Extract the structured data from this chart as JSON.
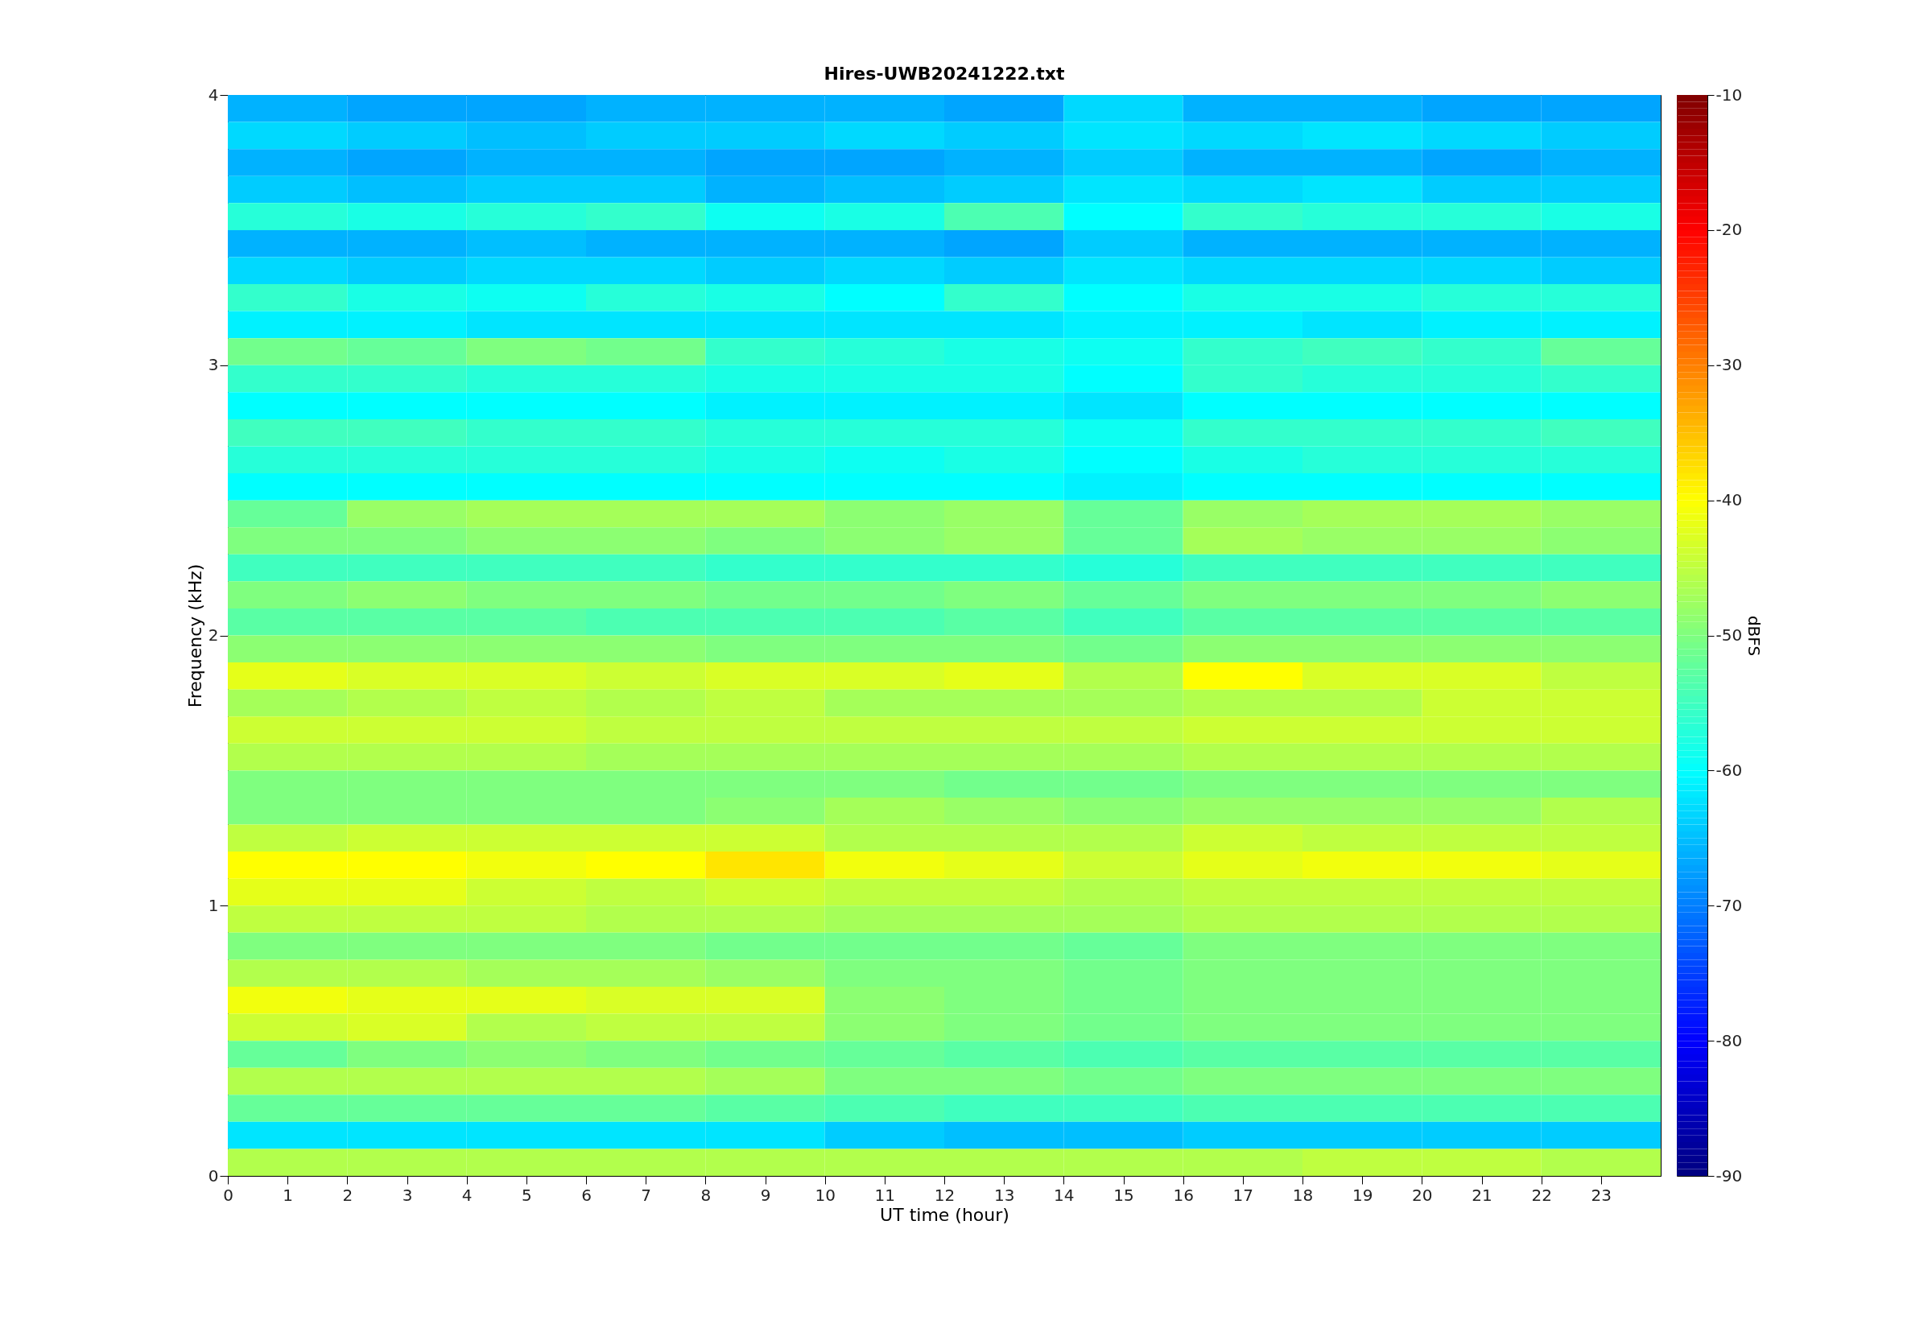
{
  "chart_data": {
    "type": "heatmap",
    "title": "Hires-UWB20241222.txt",
    "xlabel": "UT time (hour)",
    "ylabel": "Frequency (kHz)",
    "clabel": "dBFS",
    "x": [
      1,
      3,
      5,
      7,
      9,
      11,
      13,
      15,
      17,
      19,
      21,
      23
    ],
    "y": [
      3.95,
      3.85,
      3.75,
      3.65,
      3.55,
      3.45,
      3.35,
      3.25,
      3.15,
      3.05,
      2.95,
      2.85,
      2.75,
      2.65,
      2.55,
      2.45,
      2.35,
      2.25,
      2.15,
      2.05,
      1.95,
      1.85,
      1.75,
      1.65,
      1.55,
      1.45,
      1.35,
      1.25,
      1.15,
      1.05,
      0.95,
      0.85,
      0.75,
      0.65,
      0.55,
      0.45,
      0.35,
      0.25,
      0.15,
      0.05
    ],
    "cells": [
      [
        -66,
        -67,
        -67,
        -66,
        -66,
        -66,
        -67,
        -63,
        -66,
        -66,
        -67,
        -67
      ],
      [
        -63,
        -64,
        -65,
        -64,
        -64,
        -63,
        -64,
        -62,
        -63,
        -62,
        -63,
        -64
      ],
      [
        -66,
        -67,
        -66,
        -66,
        -67,
        -67,
        -66,
        -64,
        -66,
        -66,
        -67,
        -66
      ],
      [
        -64,
        -65,
        -64,
        -64,
        -66,
        -65,
        -64,
        -62,
        -63,
        -62,
        -64,
        -64
      ],
      [
        -57,
        -58,
        -57,
        -56,
        -59,
        -58,
        -54,
        -60,
        -56,
        -57,
        -57,
        -58
      ],
      [
        -66,
        -66,
        -65,
        -66,
        -66,
        -66,
        -67,
        -64,
        -66,
        -66,
        -66,
        -66
      ],
      [
        -63,
        -64,
        -63,
        -63,
        -64,
        -63,
        -64,
        -62,
        -63,
        -63,
        -63,
        -64
      ],
      [
        -56,
        -58,
        -59,
        -57,
        -58,
        -60,
        -56,
        -60,
        -58,
        -58,
        -57,
        -57
      ],
      [
        -61,
        -61,
        -62,
        -62,
        -62,
        -62,
        -62,
        -61,
        -61,
        -62,
        -61,
        -61
      ],
      [
        -51,
        -52,
        -50,
        -51,
        -56,
        -57,
        -58,
        -59,
        -56,
        -55,
        -56,
        -52
      ],
      [
        -56,
        -56,
        -57,
        -57,
        -58,
        -58,
        -58,
        -60,
        -56,
        -57,
        -57,
        -56
      ],
      [
        -60,
        -60,
        -60,
        -60,
        -61,
        -61,
        -61,
        -62,
        -60,
        -60,
        -60,
        -60
      ],
      [
        -55,
        -55,
        -56,
        -56,
        -57,
        -57,
        -57,
        -59,
        -56,
        -56,
        -56,
        -55
      ],
      [
        -57,
        -57,
        -57,
        -57,
        -58,
        -59,
        -58,
        -60,
        -58,
        -57,
        -57,
        -57
      ],
      [
        -60,
        -60,
        -60,
        -60,
        -60,
        -60,
        -60,
        -61,
        -60,
        -60,
        -60,
        -60
      ],
      [
        -52,
        -48,
        -47,
        -47,
        -47,
        -49,
        -48,
        -52,
        -48,
        -47,
        -47,
        -48
      ],
      [
        -50,
        -50,
        -49,
        -49,
        -50,
        -49,
        -48,
        -52,
        -47,
        -48,
        -48,
        -49
      ],
      [
        -55,
        -55,
        -55,
        -55,
        -56,
        -56,
        -56,
        -57,
        -55,
        -55,
        -55,
        -55
      ],
      [
        -50,
        -49,
        -50,
        -50,
        -51,
        -51,
        -50,
        -52,
        -50,
        -50,
        -50,
        -49
      ],
      [
        -53,
        -53,
        -53,
        -54,
        -54,
        -54,
        -53,
        -55,
        -53,
        -53,
        -53,
        -53
      ],
      [
        -49,
        -49,
        -49,
        -49,
        -50,
        -50,
        -50,
        -51,
        -49,
        -49,
        -49,
        -49
      ],
      [
        -42,
        -43,
        -43,
        -44,
        -43,
        -43,
        -42,
        -46,
        -40,
        -43,
        -43,
        -45
      ],
      [
        -47,
        -46,
        -45,
        -46,
        -45,
        -47,
        -47,
        -47,
        -46,
        -46,
        -44,
        -44
      ],
      [
        -44,
        -44,
        -44,
        -45,
        -45,
        -45,
        -45,
        -45,
        -44,
        -44,
        -44,
        -44
      ],
      [
        -46,
        -46,
        -46,
        -47,
        -47,
        -47,
        -47,
        -47,
        -46,
        -46,
        -46,
        -46
      ],
      [
        -50,
        -50,
        -50,
        -50,
        -50,
        -50,
        -51,
        -51,
        -50,
        -50,
        -50,
        -50
      ],
      [
        -50,
        -50,
        -50,
        -50,
        -49,
        -47,
        -48,
        -49,
        -48,
        -48,
        -48,
        -46
      ],
      [
        -45,
        -44,
        -44,
        -44,
        -44,
        -46,
        -46,
        -46,
        -44,
        -45,
        -45,
        -45
      ],
      [
        -40,
        -40,
        -41,
        -40,
        -38,
        -41,
        -42,
        -44,
        -42,
        -41,
        -41,
        -42
      ],
      [
        -42,
        -42,
        -44,
        -45,
        -44,
        -45,
        -45,
        -46,
        -45,
        -45,
        -45,
        -45
      ],
      [
        -45,
        -45,
        -45,
        -46,
        -46,
        -47,
        -47,
        -47,
        -46,
        -46,
        -46,
        -46
      ],
      [
        -50,
        -50,
        -50,
        -50,
        -51,
        -51,
        -51,
        -52,
        -50,
        -50,
        -50,
        -50
      ],
      [
        -46,
        -46,
        -47,
        -47,
        -48,
        -50,
        -50,
        -51,
        -50,
        -50,
        -50,
        -50
      ],
      [
        -41,
        -42,
        -42,
        -43,
        -43,
        -49,
        -50,
        -51,
        -50,
        -50,
        -50,
        -50
      ],
      [
        -44,
        -43,
        -46,
        -45,
        -45,
        -49,
        -50,
        -51,
        -50,
        -50,
        -50,
        -50
      ],
      [
        -52,
        -50,
        -49,
        -50,
        -51,
        -52,
        -53,
        -54,
        -53,
        -53,
        -53,
        -53
      ],
      [
        -46,
        -46,
        -46,
        -46,
        -47,
        -50,
        -50,
        -51,
        -50,
        -50,
        -50,
        -50
      ],
      [
        -52,
        -52,
        -52,
        -52,
        -53,
        -54,
        -55,
        -55,
        -54,
        -54,
        -54,
        -54
      ],
      [
        -62,
        -62,
        -62,
        -62,
        -62,
        -64,
        -65,
        -65,
        -64,
        -64,
        -64,
        -64
      ],
      [
        -46,
        -46,
        -46,
        -46,
        -46,
        -46,
        -46,
        -46,
        -46,
        -45,
        -45,
        -46
      ]
    ],
    "xlim": [
      0,
      24
    ],
    "xticks": [
      0,
      1,
      2,
      3,
      4,
      5,
      6,
      7,
      8,
      9,
      10,
      11,
      12,
      13,
      14,
      15,
      16,
      17,
      18,
      19,
      20,
      21,
      22,
      23
    ],
    "ylim": [
      0,
      4
    ],
    "yticks": [
      0,
      1,
      2,
      3,
      4
    ],
    "clim": [
      -90,
      -10
    ],
    "cticks": [
      -90,
      -80,
      -70,
      -60,
      -50,
      -40,
      -30,
      -20,
      -10
    ]
  }
}
